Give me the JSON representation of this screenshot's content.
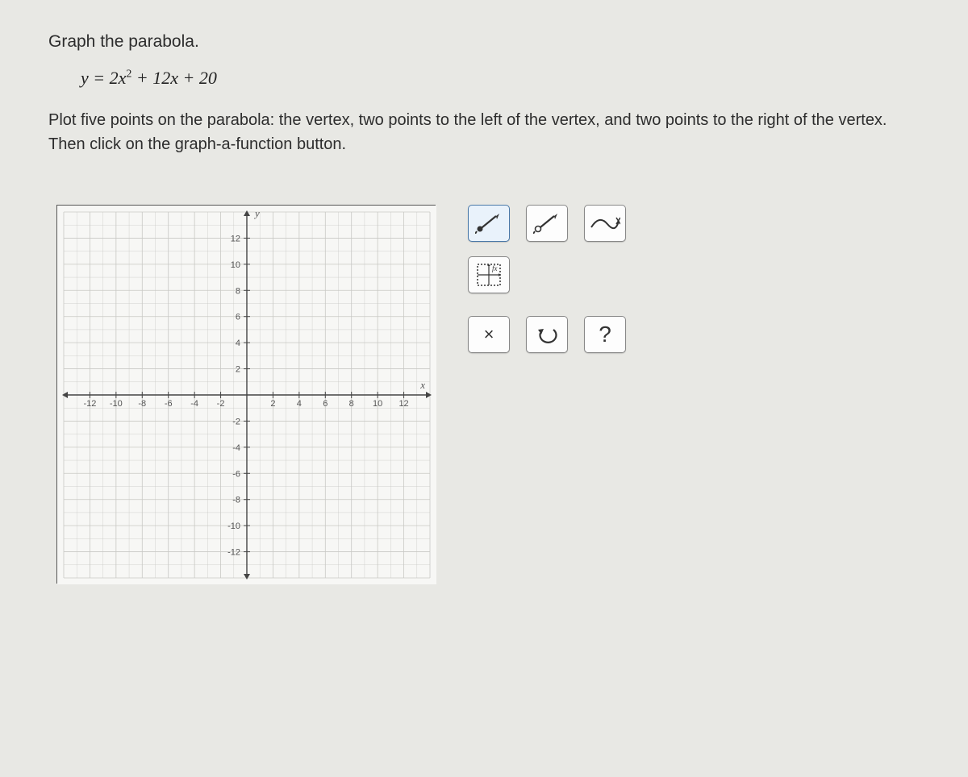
{
  "question": {
    "title": "Graph the parabola.",
    "equation_html": "y = 2x<span class='sup'>2</span> + 12x + 20",
    "instructions": "Plot five points on the parabola: the vertex, two points to the left of the vertex, and two points to the right of the vertex. Then click on the graph-a-function button."
  },
  "graph": {
    "xmin": -14,
    "xmax": 14,
    "ymin": -14,
    "ymax": 14,
    "tick_step": 2,
    "label_step": 2,
    "grid_color": "#c8c8c4",
    "axis_color": "#444444",
    "bg_color": "#f7f7f5",
    "x_axis_label": "x",
    "y_axis_label": "y",
    "x_tick_labels": [
      -12,
      -10,
      -8,
      -6,
      -4,
      -2,
      2,
      4,
      6,
      8,
      10,
      12
    ],
    "y_tick_labels": [
      -12,
      -10,
      -8,
      -6,
      -4,
      -2,
      2,
      4,
      6,
      8,
      10,
      12
    ]
  },
  "tools": {
    "point_fill": {
      "name": "point-fill-tool"
    },
    "point_open": {
      "name": "point-open-tool"
    },
    "curve": {
      "name": "curve-tool"
    },
    "graph_fn": {
      "name": "graph-function-button"
    },
    "clear": {
      "name": "clear-button",
      "label": "×"
    },
    "undo": {
      "name": "undo-button"
    },
    "help": {
      "name": "help-button",
      "label": "?"
    }
  },
  "colors": {
    "page_bg": "#e8e8e4",
    "text": "#2d2d2d",
    "tool_border": "#888888",
    "tool_selected_bg": "#e9f2fb",
    "tool_selected_border": "#4a78a8"
  }
}
